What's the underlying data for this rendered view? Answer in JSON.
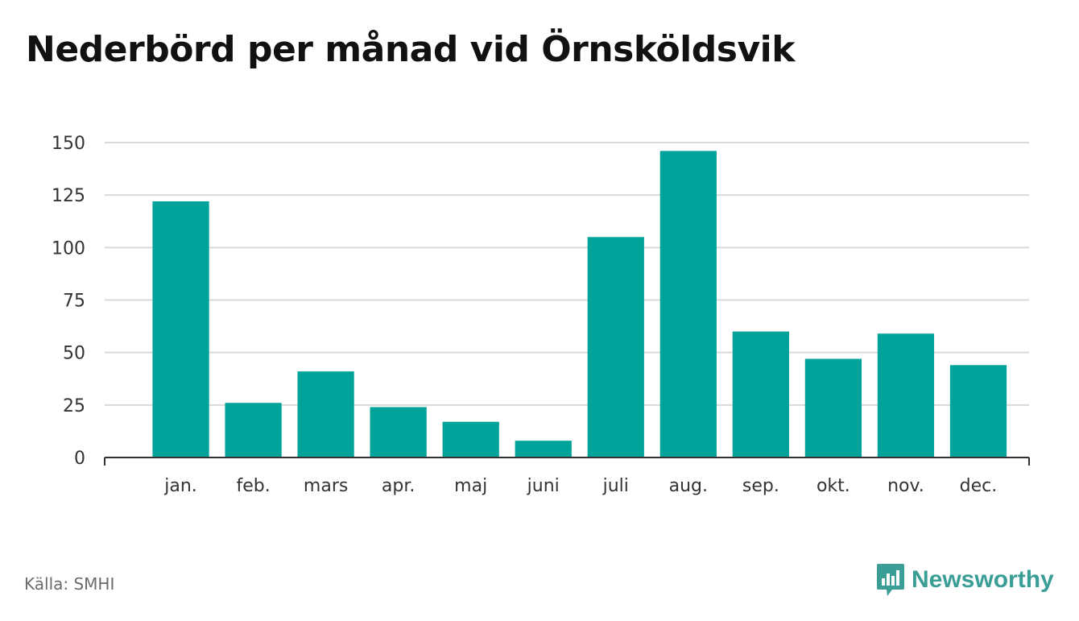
{
  "title": "Nederbörd per månad vid Örnsköldsvik",
  "source": "Källa: SMHI",
  "brand": {
    "name": "Newsworthy",
    "icon": "newsworthy-logo-icon"
  },
  "colors": {
    "bar": "#00a39a",
    "grid": "#d9d9d9",
    "axis": "#333333",
    "brand": "#3a9e96"
  },
  "chart_data": {
    "type": "bar",
    "categories": [
      "jan.",
      "feb.",
      "mars",
      "apr.",
      "maj",
      "juni",
      "juli",
      "aug.",
      "sep.",
      "okt.",
      "nov.",
      "dec."
    ],
    "values": [
      122,
      26,
      41,
      24,
      17,
      8,
      105,
      146,
      60,
      47,
      59,
      44
    ],
    "ylim": [
      0,
      150
    ],
    "yticks": [
      0,
      25,
      50,
      75,
      100,
      125,
      150
    ],
    "grid": true,
    "title": "Nederbörd per månad vid Örnsköldsvik",
    "xlabel": "",
    "ylabel": ""
  }
}
